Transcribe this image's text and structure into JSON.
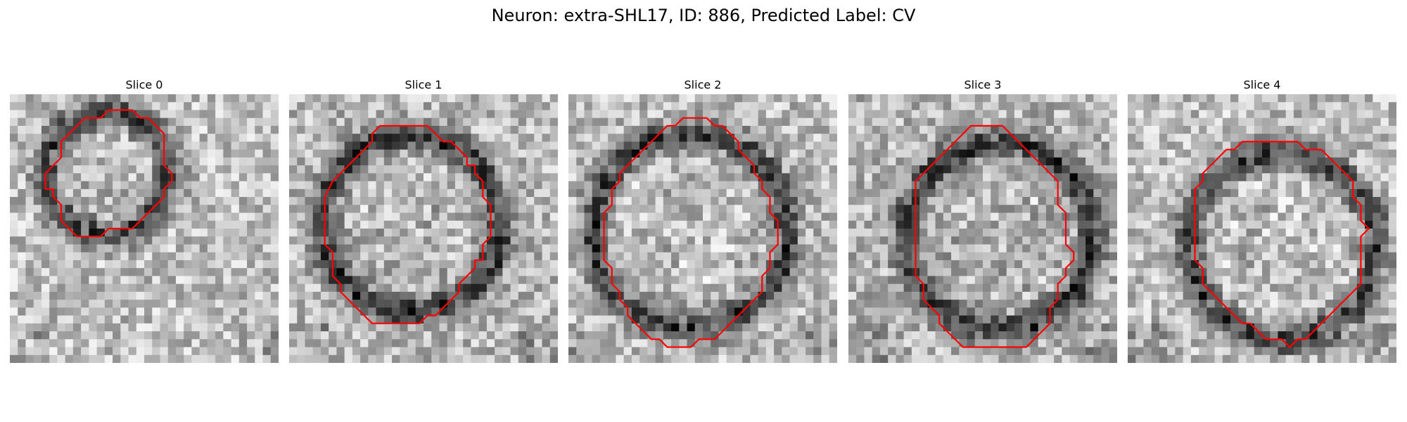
{
  "figure": {
    "title": "Neuron: extra-SHL17, ID: 886, Predicted Label: CV"
  },
  "panels": [
    {
      "title": "Slice 0",
      "contour": [
        [
          9,
          2
        ],
        [
          12,
          2
        ],
        [
          13,
          3
        ],
        [
          14,
          3
        ],
        [
          15,
          4
        ],
        [
          16,
          5
        ],
        [
          16,
          9
        ],
        [
          17,
          10
        ],
        [
          17,
          11
        ],
        [
          16,
          12
        ],
        [
          16,
          13
        ],
        [
          15,
          14
        ],
        [
          14,
          15
        ],
        [
          13,
          16
        ],
        [
          12,
          17
        ],
        [
          9,
          17
        ],
        [
          8,
          18
        ],
        [
          5,
          18
        ],
        [
          4,
          17
        ],
        [
          3,
          16
        ],
        [
          3,
          14
        ],
        [
          2,
          13
        ],
        [
          2,
          12
        ],
        [
          1,
          12
        ],
        [
          1,
          10
        ],
        [
          2,
          9
        ],
        [
          3,
          8
        ],
        [
          3,
          6
        ],
        [
          4,
          5
        ],
        [
          5,
          4
        ],
        [
          6,
          3
        ],
        [
          8,
          3
        ]
      ],
      "darkness": [
        [
          0,
          2.5,
          2.5,
          2.5
        ],
        [
          1,
          3,
          5,
          5
        ],
        [
          2,
          5,
          5,
          4
        ],
        [
          3,
          5,
          3,
          3
        ],
        [
          4,
          2,
          5,
          3
        ],
        [
          5,
          5,
          5,
          5
        ],
        [
          6,
          4,
          5,
          4
        ],
        [
          7,
          2,
          4,
          3
        ],
        [
          8,
          3,
          3,
          5
        ],
        [
          9,
          5,
          3,
          3
        ],
        [
          10,
          2,
          4,
          4
        ],
        [
          11,
          4,
          2,
          5
        ],
        [
          12,
          2,
          3,
          4
        ],
        [
          13,
          2,
          4,
          5
        ],
        [
          14,
          5,
          5,
          5
        ]
      ],
      "bgShift": 0.03
    },
    {
      "title": "Slice 1",
      "contour": [
        [
          9,
          4
        ],
        [
          14,
          4
        ],
        [
          15,
          5
        ],
        [
          16,
          6
        ],
        [
          17,
          6
        ],
        [
          19,
          8
        ],
        [
          19,
          9
        ],
        [
          20,
          9
        ],
        [
          20,
          10
        ],
        [
          21,
          11
        ],
        [
          21,
          13
        ],
        [
          22,
          14
        ],
        [
          22,
          18
        ],
        [
          21,
          19
        ],
        [
          21,
          21
        ],
        [
          20,
          21
        ],
        [
          20,
          22
        ],
        [
          19,
          23
        ],
        [
          18,
          24
        ],
        [
          18,
          25
        ],
        [
          17,
          26
        ],
        [
          16,
          27
        ],
        [
          15,
          28
        ],
        [
          14,
          28
        ],
        [
          13,
          29
        ],
        [
          7,
          29
        ],
        [
          6,
          28
        ],
        [
          5,
          27
        ],
        [
          4,
          26
        ],
        [
          3,
          25
        ],
        [
          3,
          24
        ],
        [
          2,
          23
        ],
        [
          2,
          20
        ],
        [
          1,
          19
        ],
        [
          1,
          15
        ],
        [
          1,
          13
        ],
        [
          2,
          11
        ],
        [
          3,
          10
        ],
        [
          4,
          9
        ],
        [
          5,
          8
        ],
        [
          6,
          7
        ],
        [
          7,
          6
        ],
        [
          7,
          5
        ],
        [
          8,
          4
        ]
      ],
      "darkness": [
        [
          2,
          0,
          8,
          3,
          6,
          6,
          2,
          5,
          4
        ],
        [
          12,
          4,
          4,
          3,
          6,
          8,
          2,
          5,
          4
        ],
        [
          12,
          4,
          6,
          5,
          9,
          4,
          2,
          6,
          4
        ]
      ],
      "bgShift": 0.0
    },
    {
      "title": "Slice 2",
      "contour": [
        [
          11,
          3
        ],
        [
          14,
          3
        ],
        [
          15,
          4
        ],
        [
          16,
          4
        ],
        [
          17,
          5
        ],
        [
          18,
          6
        ],
        [
          18,
          7
        ],
        [
          19,
          8
        ],
        [
          20,
          9
        ],
        [
          20,
          10
        ],
        [
          21,
          11
        ],
        [
          21,
          12
        ],
        [
          22,
          13
        ],
        [
          22,
          15
        ],
        [
          23,
          16
        ],
        [
          23,
          19
        ],
        [
          22,
          20
        ],
        [
          22,
          22
        ],
        [
          21,
          23
        ],
        [
          21,
          25
        ],
        [
          20,
          26
        ],
        [
          19,
          27
        ],
        [
          18,
          28
        ],
        [
          17,
          29
        ],
        [
          16,
          30
        ],
        [
          15,
          31
        ],
        [
          13,
          31
        ],
        [
          12,
          32
        ],
        [
          9,
          32
        ],
        [
          8,
          31
        ],
        [
          7,
          31
        ],
        [
          6,
          30
        ],
        [
          5,
          29
        ],
        [
          4,
          28
        ],
        [
          4,
          27
        ],
        [
          3,
          26
        ],
        [
          3,
          25
        ],
        [
          2,
          24
        ],
        [
          2,
          22
        ],
        [
          1,
          21
        ],
        [
          1,
          17
        ],
        [
          1,
          15
        ],
        [
          2,
          14
        ],
        [
          2,
          12
        ],
        [
          3,
          11
        ],
        [
          3,
          10
        ],
        [
          4,
          9
        ],
        [
          5,
          8
        ],
        [
          6,
          7
        ],
        [
          7,
          6
        ],
        [
          8,
          5
        ],
        [
          9,
          4
        ],
        [
          10,
          4
        ]
      ],
      "darkness": [
        [
          1,
          3,
          5,
          7,
          9
        ],
        [
          2,
          0,
          9,
          9,
          9
        ]
      ],
      "bgShift": 0.02
    },
    {
      "title": "Slice 3",
      "contour": [
        [
          12,
          4
        ],
        [
          16,
          4
        ],
        [
          17,
          5
        ],
        [
          18,
          6
        ],
        [
          19,
          7
        ],
        [
          20,
          8
        ],
        [
          21,
          9
        ],
        [
          22,
          10
        ],
        [
          23,
          11
        ],
        [
          23,
          14
        ],
        [
          24,
          15
        ],
        [
          24,
          17
        ],
        [
          24,
          19
        ],
        [
          25,
          20
        ],
        [
          25,
          21
        ],
        [
          24,
          22
        ],
        [
          24,
          23
        ],
        [
          23,
          24
        ],
        [
          23,
          26
        ],
        [
          22,
          27
        ],
        [
          22,
          29
        ],
        [
          21,
          30
        ],
        [
          20,
          31
        ],
        [
          19,
          32
        ],
        [
          11,
          32
        ],
        [
          10,
          31
        ],
        [
          9,
          30
        ],
        [
          8,
          29
        ],
        [
          8,
          28
        ],
        [
          7,
          27
        ],
        [
          6,
          26
        ],
        [
          6,
          24
        ],
        [
          5,
          23
        ],
        [
          5,
          14
        ],
        [
          5,
          11
        ],
        [
          6,
          10
        ],
        [
          7,
          9
        ],
        [
          8,
          8
        ],
        [
          9,
          7
        ],
        [
          10,
          6
        ],
        [
          11,
          5
        ]
      ],
      "darkness": [
        [
          6,
          4,
          6,
          2
        ],
        [
          7,
          4,
          6,
          2
        ]
      ],
      "bgShift": -0.01
    },
    {
      "title": "Slice 4",
      "contour": [
        [
          14,
          6
        ],
        [
          18,
          6
        ],
        [
          19,
          7
        ],
        [
          21,
          7
        ],
        [
          22,
          8
        ],
        [
          23,
          9
        ],
        [
          24,
          10
        ],
        [
          25,
          11
        ],
        [
          25,
          13
        ],
        [
          26,
          14
        ],
        [
          26,
          16
        ],
        [
          27,
          17
        ],
        [
          26,
          18
        ],
        [
          26,
          24
        ],
        [
          25,
          25
        ],
        [
          24,
          26
        ],
        [
          23,
          27
        ],
        [
          22,
          28
        ],
        [
          21,
          29
        ],
        [
          20,
          30
        ],
        [
          19,
          31
        ],
        [
          18,
          31
        ],
        [
          17,
          32
        ],
        [
          16,
          31
        ],
        [
          15,
          31
        ],
        [
          14,
          31
        ],
        [
          13,
          30
        ],
        [
          12,
          29
        ],
        [
          11,
          29
        ],
        [
          10,
          28
        ],
        [
          9,
          27
        ],
        [
          8,
          26
        ],
        [
          7,
          25
        ],
        [
          6,
          24
        ],
        [
          6,
          22
        ],
        [
          5,
          21
        ],
        [
          5,
          12
        ],
        [
          6,
          11
        ],
        [
          6,
          10
        ],
        [
          7,
          9
        ],
        [
          8,
          8
        ],
        [
          9,
          7
        ],
        [
          10,
          7
        ],
        [
          11,
          6
        ]
      ],
      "darkness": [
        [
          1,
          5,
          5,
          8
        ],
        [
          2,
          0,
          9,
          0
        ]
      ],
      "bgShift": 0.03
    }
  ],
  "styles": {
    "contour_color": "#ff0000",
    "pixel_colormap": "grayscale"
  }
}
